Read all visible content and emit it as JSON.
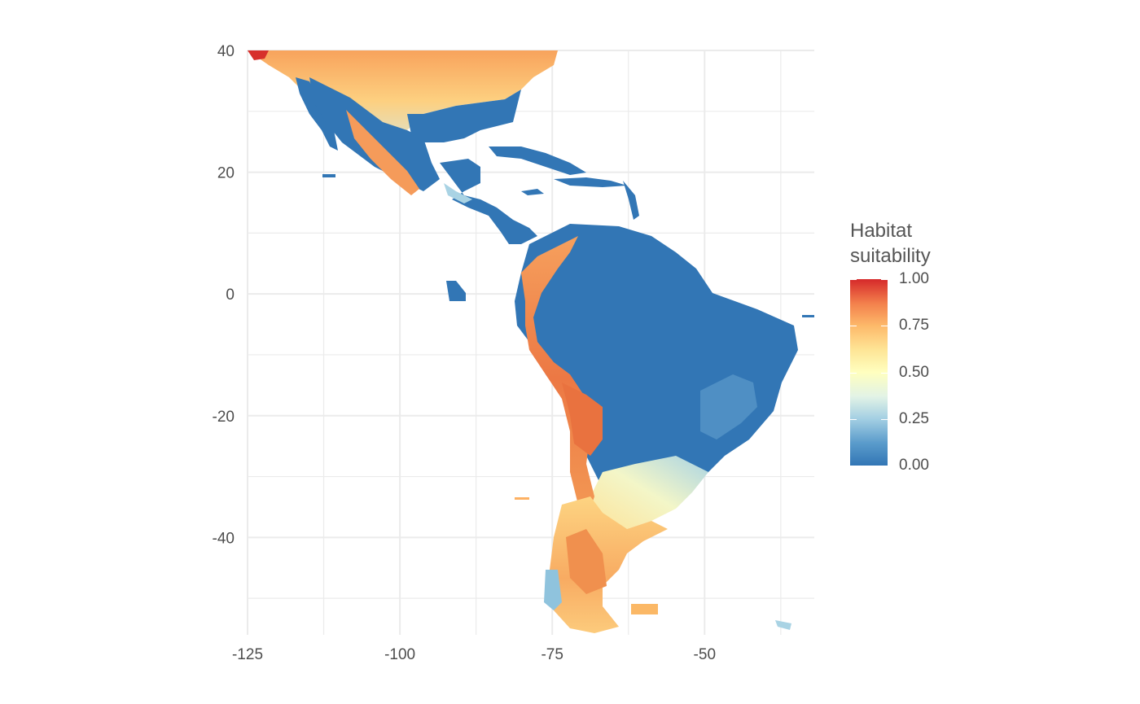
{
  "map": {
    "x_ticks": [
      "-125",
      "-100",
      "-75",
      "-50"
    ],
    "y_ticks": [
      "40",
      "20",
      "0",
      "-20",
      "-40"
    ],
    "x_tick_values": [
      -125,
      -100,
      -75,
      -50
    ],
    "y_tick_values": [
      40,
      20,
      0,
      -20,
      -40
    ],
    "x_range": [
      -125,
      -32
    ],
    "y_range": [
      -56,
      40
    ],
    "grid": true,
    "projection": "longitude-latitude raster",
    "ocean_color": "#ffffff",
    "grid_color": "#ebebeb"
  },
  "legend": {
    "title_line1": "Habitat",
    "title_line2": "suitability",
    "placement": "right",
    "labels": [
      "1.00",
      "0.75",
      "0.50",
      "0.25",
      "0.00"
    ],
    "values": [
      1.0,
      0.75,
      0.5,
      0.25,
      0.0
    ],
    "scale_colors": [
      "#3276b5",
      "#4f93c7",
      "#8fc3dd",
      "#d1ecf0",
      "#ffffbf",
      "#fee08b",
      "#fdb163",
      "#f47f4b",
      "#dc3a2c",
      "#c81e1e"
    ]
  },
  "regions": [
    {
      "name": "north-america-interior",
      "suitability": 0.65
    },
    {
      "name": "mexico-gulf-coast",
      "suitability": 0.02
    },
    {
      "name": "sierra-madre",
      "suitability": 0.75
    },
    {
      "name": "caribbean-islands",
      "suitability": 0.02
    },
    {
      "name": "amazon-brazil",
      "suitability": 0.03
    },
    {
      "name": "andes",
      "suitability": 0.85
    },
    {
      "name": "southern-cone",
      "suitability": 0.7
    },
    {
      "name": "pampas",
      "suitability": 0.4
    },
    {
      "name": "falklands",
      "suitability": 0.75
    },
    {
      "name": "galapagos",
      "suitability": 0.05
    }
  ]
}
